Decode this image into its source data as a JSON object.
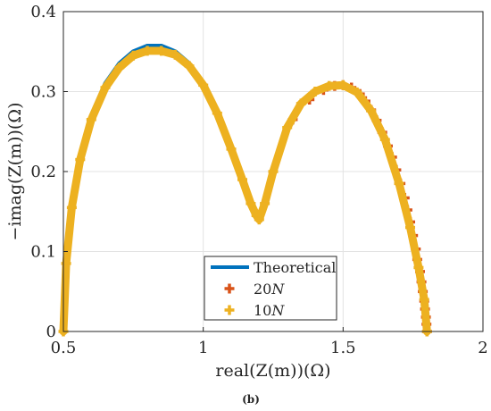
{
  "chart_data": {
    "type": "line",
    "caption": "(b)",
    "xlabel": "real(Z(m))(Ω)",
    "ylabel": "−imag(Z(m))(Ω)",
    "xlim": [
      0.5,
      2
    ],
    "ylim": [
      0,
      0.4
    ],
    "xticks": [
      0.5,
      1,
      1.5,
      2
    ],
    "xtick_labels": [
      "0.5",
      "1",
      "1.5",
      "2"
    ],
    "yticks": [
      0,
      0.1,
      0.2,
      0.3,
      0.4
    ],
    "ytick_labels": [
      "0",
      "0.1",
      "0.2",
      "0.3",
      "0.4"
    ],
    "grid": true,
    "legend_position": "bottom-center",
    "legend": [
      {
        "label": "Theoretical",
        "marker": "line",
        "color": "#0072BD"
      },
      {
        "label_base": "20",
        "label_italic": "N",
        "marker": "plus",
        "color": "#D95319"
      },
      {
        "label_base": "10",
        "label_italic": "N",
        "marker": "plus",
        "color": "#EDB120"
      }
    ],
    "series": [
      {
        "name": "Theoretical",
        "style": "line",
        "color": "#0072BD",
        "x": [
          0.5,
          0.51,
          0.53,
          0.56,
          0.6,
          0.65,
          0.7,
          0.75,
          0.8,
          0.85,
          0.9,
          0.95,
          1.0,
          1.05,
          1.1,
          1.14,
          1.17,
          1.19,
          1.2,
          1.22,
          1.25,
          1.3,
          1.35,
          1.4,
          1.45,
          1.5,
          1.55,
          1.6,
          1.65,
          1.7,
          1.74,
          1.77,
          1.79,
          1.8
        ],
        "y": [
          0.0,
          0.09,
          0.16,
          0.22,
          0.27,
          0.31,
          0.335,
          0.35,
          0.357,
          0.357,
          0.35,
          0.335,
          0.31,
          0.275,
          0.23,
          0.19,
          0.16,
          0.145,
          0.14,
          0.16,
          0.2,
          0.255,
          0.285,
          0.3,
          0.307,
          0.309,
          0.3,
          0.277,
          0.24,
          0.185,
          0.13,
          0.08,
          0.04,
          0.0
        ]
      },
      {
        "name": "20N",
        "style": "markers",
        "color": "#D95319",
        "x": [
          1.32,
          1.38,
          1.43,
          1.47,
          1.5,
          1.53,
          1.56,
          1.58,
          1.6,
          1.62,
          1.64,
          1.66,
          1.675,
          1.69,
          1.705,
          1.72,
          1.73,
          1.74,
          1.75,
          1.76,
          1.765,
          1.775,
          1.78,
          1.785,
          1.79,
          1.793,
          1.796,
          1.798,
          1.8
        ],
        "y": [
          0.265,
          0.29,
          0.302,
          0.307,
          0.308,
          0.305,
          0.297,
          0.288,
          0.277,
          0.264,
          0.249,
          0.232,
          0.218,
          0.202,
          0.185,
          0.167,
          0.152,
          0.137,
          0.12,
          0.103,
          0.09,
          0.075,
          0.062,
          0.05,
          0.038,
          0.028,
          0.018,
          0.009,
          0.0
        ]
      },
      {
        "name": "10N",
        "style": "markers",
        "color": "#EDB120",
        "x": [
          0.5,
          0.51,
          0.53,
          0.56,
          0.6,
          0.65,
          0.7,
          0.75,
          0.8,
          0.85,
          0.9,
          0.95,
          1.0,
          1.05,
          1.1,
          1.14,
          1.17,
          1.19,
          1.2,
          1.22,
          1.25,
          1.3,
          1.35,
          1.4,
          1.45,
          1.5,
          1.55,
          1.6,
          1.65,
          1.7,
          1.74,
          1.77,
          1.79,
          1.8
        ],
        "y": [
          0.0,
          0.085,
          0.155,
          0.215,
          0.265,
          0.305,
          0.33,
          0.345,
          0.351,
          0.351,
          0.346,
          0.332,
          0.308,
          0.273,
          0.228,
          0.19,
          0.16,
          0.145,
          0.14,
          0.16,
          0.2,
          0.255,
          0.285,
          0.3,
          0.307,
          0.308,
          0.299,
          0.276,
          0.24,
          0.185,
          0.13,
          0.08,
          0.04,
          0.0
        ]
      }
    ]
  }
}
